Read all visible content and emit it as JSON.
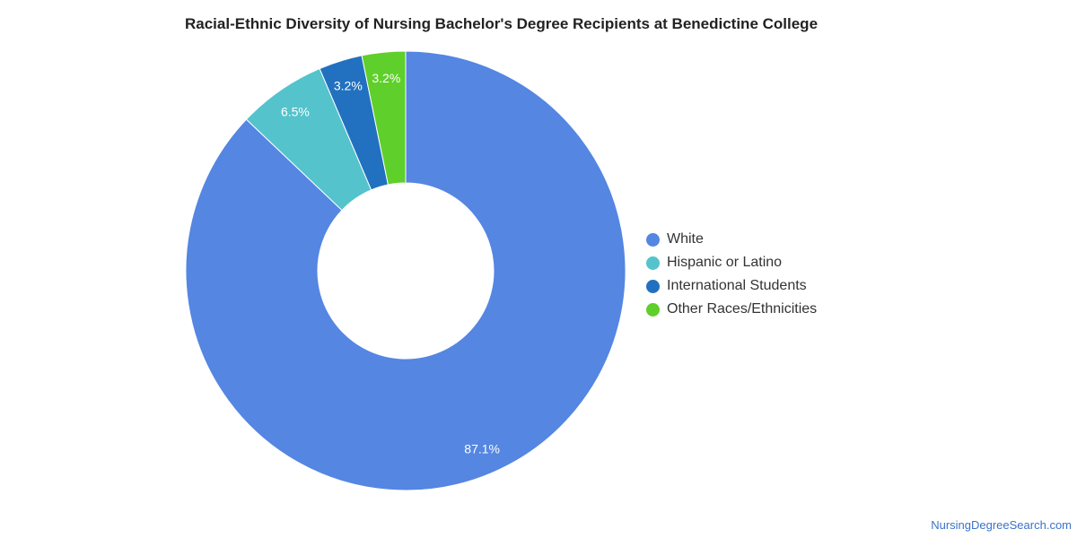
{
  "chart_data": {
    "type": "pie",
    "variant": "donut",
    "title": "Racial-Ethnic Diversity of Nursing Bachelor's Degree Recipients at Benedictine College",
    "categories": [
      "White",
      "Hispanic or Latino",
      "International Students",
      "Other Races/Ethnicities"
    ],
    "values": [
      87.1,
      6.5,
      3.2,
      3.2
    ],
    "value_labels": [
      "87.1%",
      "6.5%",
      "3.2%",
      "3.2%"
    ],
    "colors": [
      "#5486e2",
      "#54c3cc",
      "#2271c0",
      "#5fcf2b"
    ],
    "legend_position": "right",
    "start": "top",
    "direction": "clockwise"
  },
  "footer": {
    "source": "NursingDegreeSearch.com"
  }
}
